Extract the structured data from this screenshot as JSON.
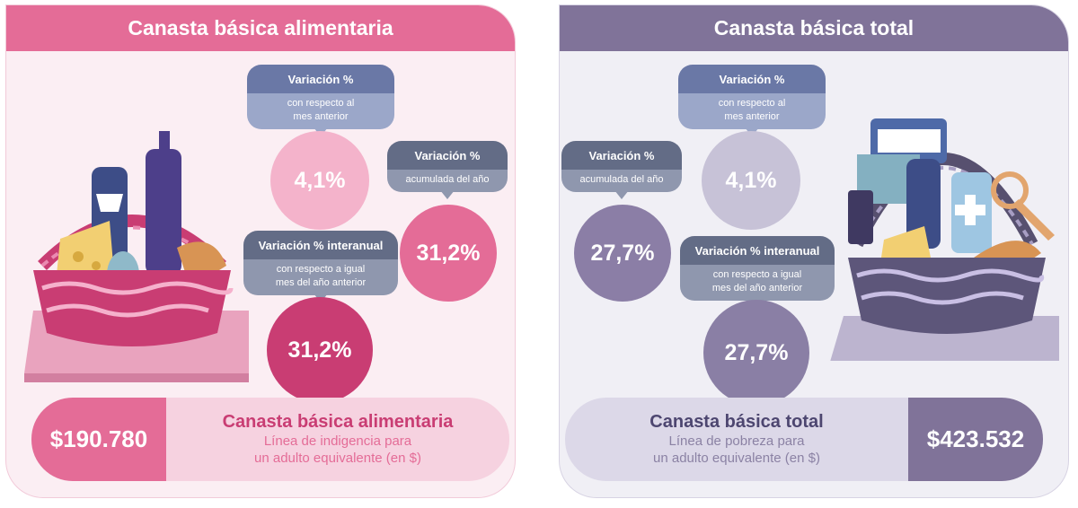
{
  "left": {
    "header": "Canasta básica alimentaria",
    "bubble_monthly": {
      "title": "Variación %",
      "line1": "con respecto al",
      "line2": "mes anterior",
      "value": "4,1%"
    },
    "bubble_ytd": {
      "title": "Variación %",
      "line1": "acumulada del año",
      "value": "31,2%"
    },
    "bubble_yoy": {
      "title": "Variación % interanual",
      "line1": "con respecto a igual",
      "line2": "mes del año anterior",
      "value": "31,2%"
    },
    "footer": {
      "amount": "$190.780",
      "title": "Canasta básica alimentaria",
      "line1": "Línea de indigencia para",
      "line2": "un adulto equivalente (en $)"
    }
  },
  "right": {
    "header": "Canasta básica total",
    "bubble_monthly": {
      "title": "Variación %",
      "line1": "con respecto al",
      "line2": "mes anterior",
      "value": "4,1%"
    },
    "bubble_ytd": {
      "title": "Variación %",
      "line1": "acumulada del año",
      "value": "27,7%"
    },
    "bubble_yoy": {
      "title": "Variación % interanual",
      "line1": "con respecto a igual",
      "line2": "mes del año anterior",
      "value": "27,7%"
    },
    "footer": {
      "amount": "$423.532",
      "title": "Canasta básica total",
      "line1": "Línea de pobreza para",
      "line2": "un adulto equivalente (en $)"
    }
  },
  "icons": {
    "left_basket": "food-basket-icon",
    "right_basket": "total-basket-icon"
  },
  "colors": {
    "pink": "#e46c97",
    "violet": "#807399",
    "deep_pink": "#c93d73",
    "deep_violet": "#6d6487"
  }
}
